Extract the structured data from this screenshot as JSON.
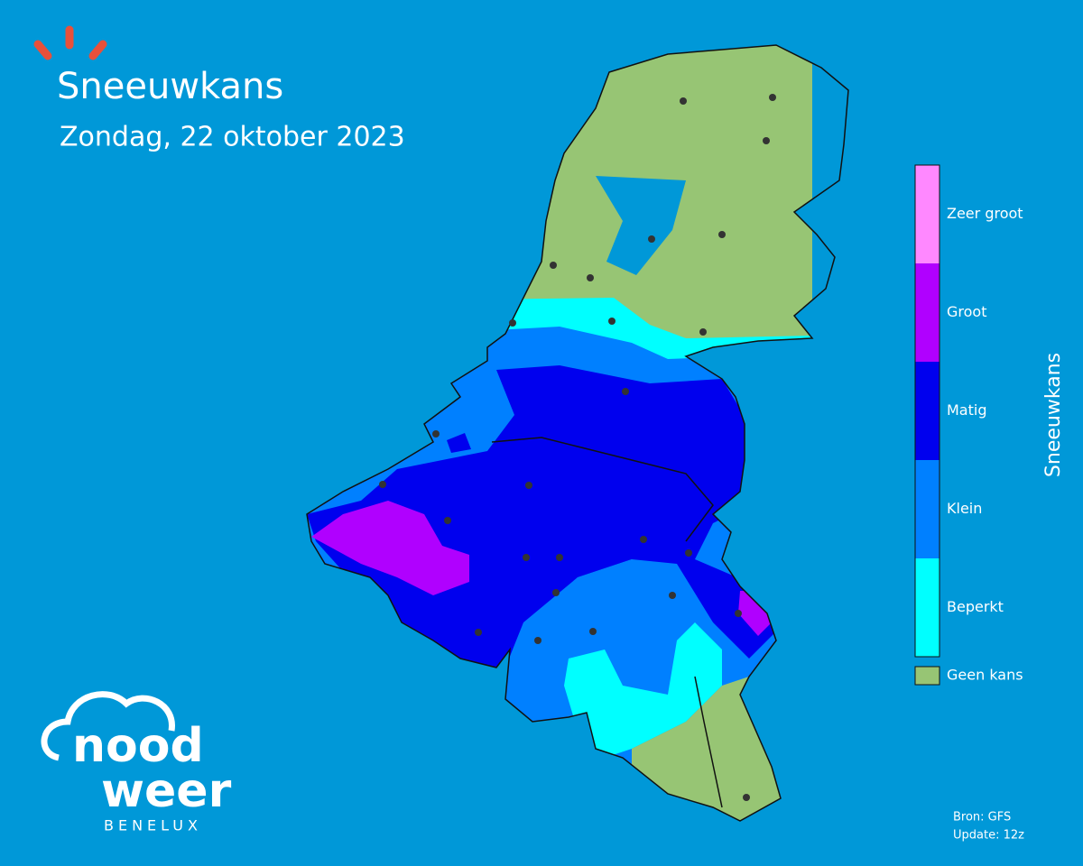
{
  "header": {
    "title": "Sneeuwkans",
    "subtitle": "Zondag, 22 oktober 2023"
  },
  "legend": {
    "title": "Sneeuwkans",
    "items": [
      {
        "label": "Zeer groot",
        "color": "#ff88ff"
      },
      {
        "label": "Groot",
        "color": "#b000ff"
      },
      {
        "label": "Matig",
        "color": "#0000ee"
      },
      {
        "label": "Klein",
        "color": "#0080ff"
      },
      {
        "label": "Beperkt",
        "color": "#00ffff"
      }
    ],
    "none": {
      "label": "Geen kans",
      "color": "#97c574"
    }
  },
  "source": [
    "Bron: GFS",
    "Update: 12z"
  ],
  "logo": {
    "line1": "nood",
    "line2": "weer",
    "line3": "BENELUX"
  }
}
